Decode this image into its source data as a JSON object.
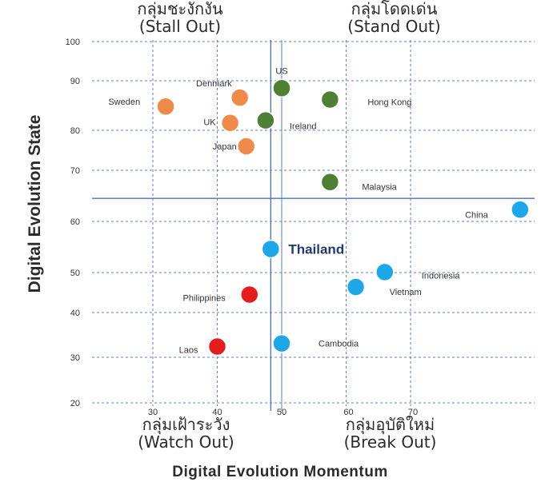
{
  "quadrants": {
    "top_left": {
      "thai": "กลุ่มชะงักงัน",
      "en": "(Stall Out)"
    },
    "top_right": {
      "thai": "กลุ่มโดดเด่น",
      "en": "(Stand Out)"
    },
    "bottom_left": {
      "thai": "กลุ่มเฝ้าระวัง",
      "en": "(Watch Out)"
    },
    "bottom_right": {
      "thai": "กลุ่มอุบัติใหม่",
      "en": "(Break Out)"
    }
  },
  "chart_data": {
    "type": "scatter",
    "xlabel": "Digital Evolution Momentum",
    "ylabel": "Digital Evolution State",
    "x_ticks": [
      "30",
      "40",
      "50",
      "60",
      "70"
    ],
    "y_ticks": [
      "20",
      "30",
      "40",
      "50",
      "60",
      "70",
      "80",
      "90",
      "100"
    ],
    "reference_lines": {
      "x": 48.3,
      "y": 64.5
    },
    "colors": {
      "orange": "#f08a4b",
      "green": "#4f7f34",
      "blue": "#1ea7e8",
      "red": "#e31d1d"
    },
    "points": [
      {
        "label": "US",
        "x": 50.0,
        "y": 88.5,
        "color": "green"
      },
      {
        "label": "Hong Kong",
        "x": 57.5,
        "y": 86.2,
        "color": "green"
      },
      {
        "label": "Ireland",
        "x": 47.5,
        "y": 82.0,
        "color": "green"
      },
      {
        "label": "Malaysia",
        "x": 57.5,
        "y": 67.7,
        "color": "green"
      },
      {
        "label": "Denmark",
        "x": 43.5,
        "y": 86.6,
        "color": "orange"
      },
      {
        "label": "Sweden",
        "x": 32.0,
        "y": 84.8,
        "color": "orange"
      },
      {
        "label": "UK",
        "x": 42.0,
        "y": 81.5,
        "color": "orange"
      },
      {
        "label": "Japan",
        "x": 44.5,
        "y": 76.0,
        "color": "orange"
      },
      {
        "label": "China",
        "x": 87.0,
        "y": 62.3,
        "color": "blue"
      },
      {
        "label": "Thailand",
        "x": 48.3,
        "y": 54.6,
        "color": "blue",
        "highlight": true
      },
      {
        "label": "Indonesia",
        "x": 66.0,
        "y": 50.1,
        "color": "blue"
      },
      {
        "label": "Vietnam",
        "x": 61.5,
        "y": 46.4,
        "color": "blue"
      },
      {
        "label": "Philippines",
        "x": 45.0,
        "y": 44.5,
        "color": "red"
      },
      {
        "label": "Laos",
        "x": 40.0,
        "y": 32.4,
        "color": "red"
      },
      {
        "label": "Cambodia",
        "x": 50.0,
        "y": 33.1,
        "color": "blue"
      }
    ]
  }
}
